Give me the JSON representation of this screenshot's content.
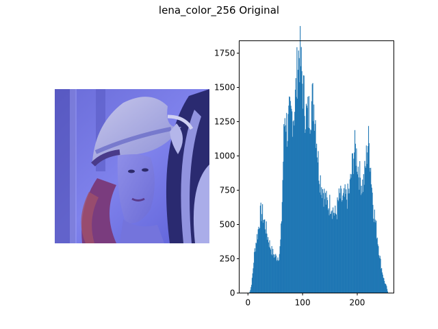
{
  "figure": {
    "title": "lena_color_256 Original"
  },
  "image_panel": {
    "icon": "portrait-photo",
    "tint_color": "#5a5ee0"
  },
  "chart_data": {
    "type": "bar",
    "title": "",
    "xlabel": "",
    "ylabel": "",
    "xlim": [
      -16,
      267
    ],
    "ylim": [
      0,
      1840
    ],
    "bar_color": "#1f77b4",
    "x_ticks": [
      "0",
      "100",
      "200"
    ],
    "y_ticks": [
      "0",
      "250",
      "500",
      "750",
      "1000",
      "1250",
      "1500",
      "1750"
    ],
    "profile": [
      [
        0,
        0
      ],
      [
        3,
        5
      ],
      [
        5,
        30
      ],
      [
        7,
        80
      ],
      [
        9,
        160
      ],
      [
        11,
        260
      ],
      [
        13,
        330
      ],
      [
        15,
        380
      ],
      [
        17,
        420
      ],
      [
        19,
        470
      ],
      [
        21,
        530
      ],
      [
        23,
        580
      ],
      [
        25,
        590
      ],
      [
        27,
        570
      ],
      [
        30,
        520
      ],
      [
        33,
        470
      ],
      [
        36,
        410
      ],
      [
        40,
        350
      ],
      [
        44,
        300
      ],
      [
        48,
        275
      ],
      [
        52,
        260
      ],
      [
        56,
        265
      ],
      [
        58,
        300
      ],
      [
        60,
        400
      ],
      [
        62,
        600
      ],
      [
        64,
        900
      ],
      [
        66,
        1200
      ],
      [
        68,
        1330
      ],
      [
        70,
        1250
      ],
      [
        72,
        1170
      ],
      [
        74,
        1230
      ],
      [
        76,
        1280
      ],
      [
        78,
        1270
      ],
      [
        80,
        1300
      ],
      [
        82,
        1320
      ],
      [
        84,
        1310
      ],
      [
        86,
        1380
      ],
      [
        88,
        1500
      ],
      [
        90,
        1620
      ],
      [
        92,
        1720
      ],
      [
        94,
        1750
      ],
      [
        96,
        1700
      ],
      [
        98,
        1600
      ],
      [
        100,
        1520
      ],
      [
        102,
        1450
      ],
      [
        104,
        1360
      ],
      [
        106,
        1310
      ],
      [
        108,
        1290
      ],
      [
        110,
        1300
      ],
      [
        112,
        1320
      ],
      [
        114,
        1340
      ],
      [
        116,
        1380
      ],
      [
        118,
        1400
      ],
      [
        120,
        1390
      ],
      [
        122,
        1340
      ],
      [
        124,
        1240
      ],
      [
        126,
        1100
      ],
      [
        128,
        980
      ],
      [
        130,
        890
      ],
      [
        132,
        840
      ],
      [
        134,
        800
      ],
      [
        136,
        770
      ],
      [
        138,
        740
      ],
      [
        140,
        700
      ],
      [
        142,
        680
      ],
      [
        144,
        660
      ],
      [
        146,
        650
      ],
      [
        148,
        640
      ],
      [
        150,
        650
      ],
      [
        152,
        660
      ],
      [
        154,
        630
      ],
      [
        156,
        600
      ],
      [
        158,
        580
      ],
      [
        160,
        570
      ],
      [
        162,
        590
      ],
      [
        164,
        640
      ],
      [
        166,
        680
      ],
      [
        168,
        700
      ],
      [
        170,
        690
      ],
      [
        172,
        680
      ],
      [
        174,
        670
      ],
      [
        176,
        690
      ],
      [
        178,
        700
      ],
      [
        180,
        690
      ],
      [
        182,
        700
      ],
      [
        184,
        720
      ],
      [
        186,
        760
      ],
      [
        188,
        820
      ],
      [
        190,
        900
      ],
      [
        192,
        980
      ],
      [
        194,
        1030
      ],
      [
        196,
        1050
      ],
      [
        198,
        1020
      ],
      [
        200,
        960
      ],
      [
        202,
        900
      ],
      [
        204,
        860
      ],
      [
        206,
        830
      ],
      [
        208,
        800
      ],
      [
        210,
        790
      ],
      [
        212,
        820
      ],
      [
        214,
        880
      ],
      [
        216,
        960
      ],
      [
        218,
        1060
      ],
      [
        220,
        1110
      ],
      [
        222,
        1060
      ],
      [
        224,
        950
      ],
      [
        226,
        820
      ],
      [
        228,
        700
      ],
      [
        230,
        600
      ],
      [
        232,
        560
      ],
      [
        234,
        490
      ],
      [
        236,
        430
      ],
      [
        238,
        370
      ],
      [
        240,
        300
      ],
      [
        242,
        240
      ],
      [
        244,
        190
      ],
      [
        246,
        150
      ],
      [
        248,
        110
      ],
      [
        250,
        80
      ],
      [
        252,
        60
      ],
      [
        254,
        40
      ],
      [
        256,
        0
      ]
    ]
  }
}
